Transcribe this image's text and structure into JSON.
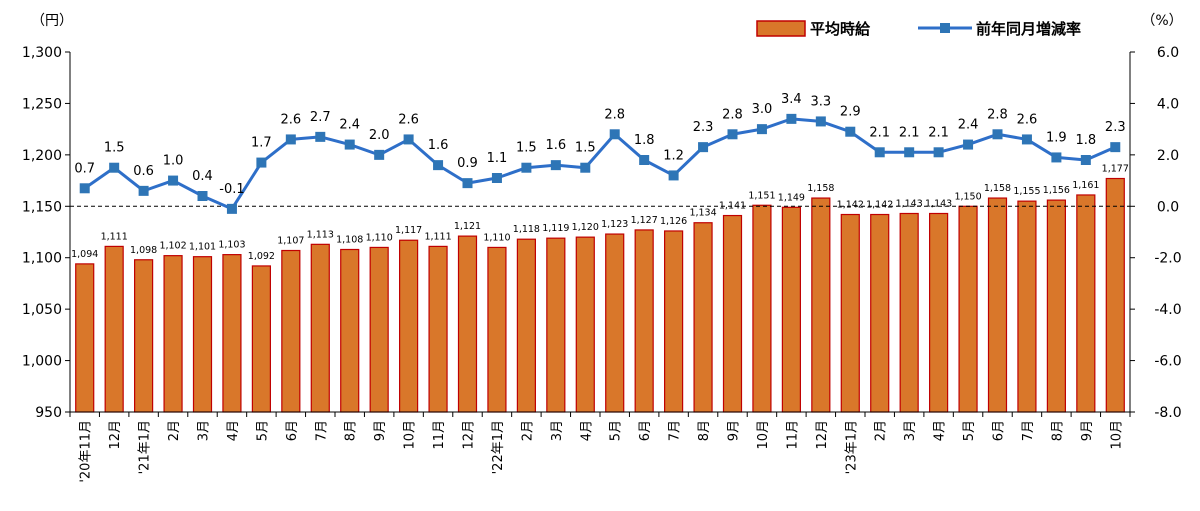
{
  "chart_data": {
    "type": "bar+line",
    "categories": [
      "'20年11月",
      "12月",
      "'21年1月",
      "2月",
      "3月",
      "4月",
      "5月",
      "6月",
      "7月",
      "8月",
      "9月",
      "10月",
      "11月",
      "12月",
      "'22年1月",
      "2月",
      "3月",
      "4月",
      "5月",
      "6月",
      "7月",
      "8月",
      "9月",
      "10月",
      "11月",
      "12月",
      "'23年1月",
      "2月",
      "3月",
      "4月",
      "5月",
      "6月",
      "7月",
      "8月",
      "9月",
      "10月"
    ],
    "series": [
      {
        "name": "平均時給",
        "type": "bar",
        "axis": "left",
        "color": "#D9772A",
        "border_color": "#C00000",
        "values": [
          1094,
          1111,
          1098,
          1102,
          1101,
          1103,
          1092,
          1107,
          1113,
          1108,
          1110,
          1117,
          1111,
          1121,
          1110,
          1118,
          1119,
          1120,
          1123,
          1127,
          1126,
          1134,
          1141,
          1151,
          1149,
          1158,
          1142,
          1142,
          1143,
          1143,
          1150,
          1158,
          1155,
          1156,
          1161,
          1177
        ],
        "labels": [
          "1,094",
          "1,111",
          "1,098",
          "1,102",
          "1,101",
          "1,103",
          "1,092",
          "1,107",
          "1,113",
          "1,108",
          "1,110",
          "1,117",
          "1,111",
          "1,121",
          "1,110",
          "1,118",
          "1,119",
          "1,120",
          "1,123",
          "1,127",
          "1,126",
          "1,134",
          "1,141",
          "1,151",
          "1,149",
          "1,158",
          "1,142",
          "1,142",
          "1,143",
          "1,143",
          "1,150",
          "1,158",
          "1,155",
          "1,156",
          "1,161",
          "1,177"
        ]
      },
      {
        "name": "前年同月増減率",
        "type": "line",
        "axis": "right",
        "color": "#2E6FC9",
        "marker_color": "#2E75B6",
        "values": [
          0.7,
          1.5,
          0.6,
          1.0,
          0.4,
          -0.1,
          1.7,
          2.6,
          2.7,
          2.4,
          2.0,
          2.6,
          1.6,
          0.9,
          1.1,
          1.5,
          1.6,
          1.5,
          2.8,
          1.8,
          1.2,
          2.3,
          2.8,
          3.0,
          3.4,
          3.3,
          2.9,
          2.1,
          2.1,
          2.1,
          2.4,
          2.8,
          2.6,
          1.9,
          1.8,
          2.3
        ],
        "labels": [
          "0.7",
          "1.5",
          "0.6",
          "1.0",
          "0.4",
          "-0.1",
          "1.7",
          "2.6",
          "2.7",
          "2.4",
          "2.0",
          "2.6",
          "1.6",
          "0.9",
          "1.1",
          "1.5",
          "1.6",
          "1.5",
          "2.8",
          "1.8",
          "1.2",
          "2.3",
          "2.8",
          "3.0",
          "3.4",
          "3.3",
          "2.9",
          "2.1",
          "2.1",
          "2.1",
          "2.4",
          "2.8",
          "2.6",
          "1.9",
          "1.8",
          "2.3"
        ]
      }
    ],
    "left_axis": {
      "unit": "（円）",
      "min": 950,
      "max": 1300,
      "step": 50,
      "tick_labels": [
        "950",
        "1,000",
        "1,050",
        "1,100",
        "1,150",
        "1,200",
        "1,250",
        "1,300"
      ]
    },
    "right_axis": {
      "unit": "（%）",
      "min": -8,
      "max": 6,
      "step": 2,
      "tick_labels": [
        "-8.0",
        "-6.0",
        "-4.0",
        "-2.0",
        "0.0",
        "2.0",
        "4.0",
        "6.0"
      ]
    },
    "zero_line": "dashed",
    "grid": false,
    "legend_position": "top-right"
  }
}
